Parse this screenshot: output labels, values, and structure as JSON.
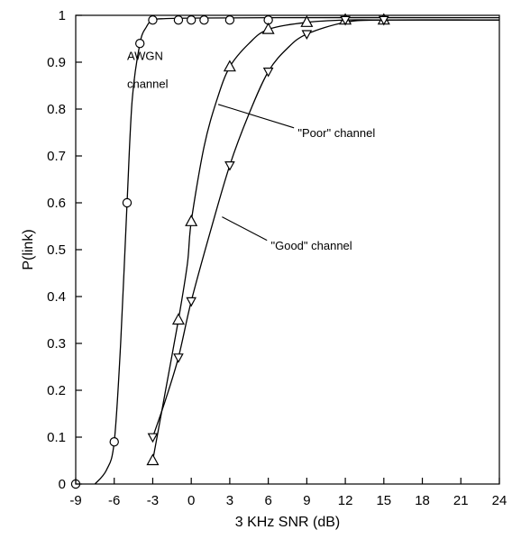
{
  "chart_data": {
    "type": "scatter",
    "title": "",
    "xlabel": "3 KHz SNR (dB)",
    "ylabel": "P(link)",
    "xlim": [
      -9,
      24
    ],
    "ylim": [
      0,
      1
    ],
    "xticks": [
      -9,
      -6,
      -3,
      0,
      3,
      6,
      9,
      12,
      15,
      18,
      21,
      24
    ],
    "yticks": [
      0,
      0.1,
      0.2,
      0.3,
      0.4,
      0.5,
      0.6,
      0.7,
      0.8,
      0.9,
      1
    ],
    "grid": false,
    "series": [
      {
        "marker": "circle",
        "points": [
          [
            -9,
            0.0
          ],
          [
            -6,
            0.09
          ],
          [
            -5,
            0.6
          ],
          [
            -4,
            0.94
          ],
          [
            -3,
            0.99
          ],
          [
            -1,
            0.99
          ],
          [
            0,
            0.99
          ],
          [
            1,
            0.99
          ],
          [
            3,
            0.99
          ],
          [
            6,
            0.99
          ]
        ],
        "curve": [
          [
            -7.5,
            0.0
          ],
          [
            -6.6,
            0.03
          ],
          [
            -6,
            0.09
          ],
          [
            -5.5,
            0.3
          ],
          [
            -5,
            0.6
          ],
          [
            -4.6,
            0.82
          ],
          [
            -4,
            0.94
          ],
          [
            -3.5,
            0.975
          ],
          [
            -3,
            0.99
          ],
          [
            -2,
            0.993
          ],
          [
            0,
            0.994
          ],
          [
            6,
            0.995
          ],
          [
            24,
            0.995
          ]
        ]
      },
      {
        "marker": "triangle-up",
        "points": [
          [
            -3,
            0.05
          ],
          [
            -1,
            0.35
          ],
          [
            0,
            0.56
          ],
          [
            3,
            0.89
          ],
          [
            6,
            0.97
          ],
          [
            9,
            0.985
          ],
          [
            12,
            0.99
          ],
          [
            15,
            0.99
          ]
        ],
        "curve": [
          [
            -3,
            0.05
          ],
          [
            -2,
            0.2
          ],
          [
            -1,
            0.35
          ],
          [
            -0.3,
            0.47
          ],
          [
            0,
            0.56
          ],
          [
            1,
            0.72
          ],
          [
            2,
            0.82
          ],
          [
            3,
            0.89
          ],
          [
            4.5,
            0.94
          ],
          [
            6,
            0.97
          ],
          [
            9,
            0.985
          ],
          [
            12,
            0.99
          ],
          [
            15,
            0.99
          ],
          [
            24,
            0.99
          ]
        ]
      },
      {
        "marker": "triangle-down",
        "points": [
          [
            -3,
            0.1
          ],
          [
            -1,
            0.27
          ],
          [
            0,
            0.39
          ],
          [
            3,
            0.68
          ],
          [
            6,
            0.88
          ],
          [
            9,
            0.96
          ],
          [
            12,
            0.99
          ],
          [
            15,
            0.99
          ]
        ],
        "curve": [
          [
            -3,
            0.1
          ],
          [
            -2,
            0.18
          ],
          [
            -1,
            0.27
          ],
          [
            0,
            0.39
          ],
          [
            1.5,
            0.54
          ],
          [
            3,
            0.68
          ],
          [
            4.5,
            0.79
          ],
          [
            6,
            0.88
          ],
          [
            7.5,
            0.93
          ],
          [
            9,
            0.96
          ],
          [
            12,
            0.985
          ],
          [
            15,
            0.99
          ],
          [
            24,
            0.99
          ]
        ]
      }
    ],
    "annotations": [
      {
        "text": "AWGN",
        "x": -5,
        "y": 0.905
      },
      {
        "text": "channel",
        "x": -5,
        "y": 0.845
      },
      {
        "text": "\"Poor\" channel",
        "x": 8.3,
        "y": 0.74,
        "pointer": [
          [
            2.1,
            0.81
          ],
          [
            8,
            0.76
          ]
        ]
      },
      {
        "text": "\"Good\" channel",
        "x": 6.2,
        "y": 0.5,
        "pointer": [
          [
            2.4,
            0.57
          ],
          [
            5.9,
            0.52
          ]
        ]
      }
    ]
  }
}
